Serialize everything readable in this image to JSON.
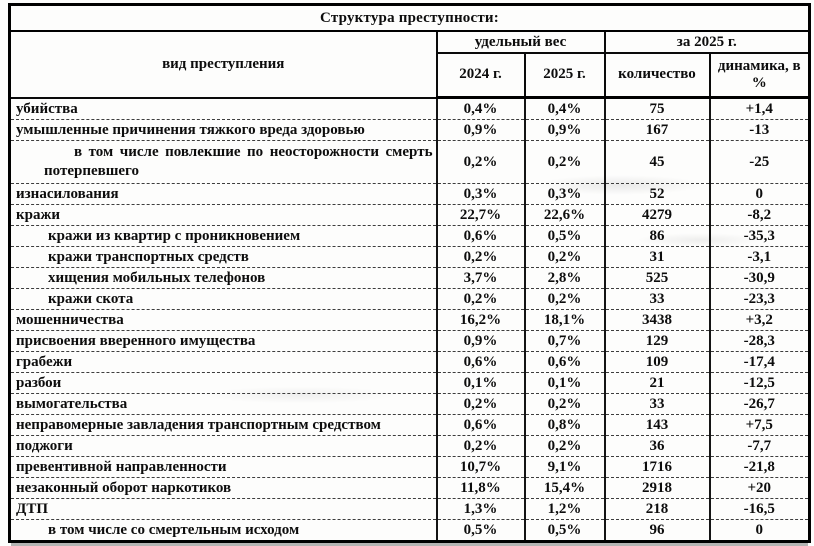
{
  "document": {
    "title": "Структура преступности:",
    "columns": {
      "crime_type": "вид преступления",
      "share_group": "удельный вес",
      "year_group": "за 2025 г.",
      "y2024": "2024 г.",
      "y2025": "2025 г.",
      "count": "количество",
      "dynamics": "динамика, в %"
    },
    "rows": [
      {
        "label": "убийства",
        "indent": "none",
        "share_2024": "0,4%",
        "share_2025": "0,4%",
        "count": "75",
        "dynamics": "+1,4"
      },
      {
        "label": "умышленные причинения тяжкого вреда здоровью",
        "indent": "none",
        "share_2024": "0,9%",
        "share_2025": "0,9%",
        "count": "167",
        "dynamics": "-13"
      },
      {
        "label": "в том числе повлекшие по неосторожности смерть потерпевшего",
        "indent": "hanging",
        "share_2024": "0,2%",
        "share_2025": "0,2%",
        "count": "45",
        "dynamics": "-25"
      },
      {
        "label": "изнасилования",
        "indent": "none",
        "share_2024": "0,3%",
        "share_2025": "0,3%",
        "count": "52",
        "dynamics": "0"
      },
      {
        "label": "кражи",
        "indent": "none",
        "share_2024": "22,7%",
        "share_2025": "22,6%",
        "count": "4279",
        "dynamics": "-8,2"
      },
      {
        "label": "кражи из квартир с проникновением",
        "indent": "sub",
        "share_2024": "0,6%",
        "share_2025": "0,5%",
        "count": "86",
        "dynamics": "-35,3"
      },
      {
        "label": "кражи транспортных средств",
        "indent": "sub",
        "share_2024": "0,2%",
        "share_2025": "0,2%",
        "count": "31",
        "dynamics": "-3,1"
      },
      {
        "label": "хищения мобильных телефонов",
        "indent": "sub",
        "share_2024": "3,7%",
        "share_2025": "2,8%",
        "count": "525",
        "dynamics": "-30,9"
      },
      {
        "label": "кражи скота",
        "indent": "sub",
        "share_2024": "0,2%",
        "share_2025": "0,2%",
        "count": "33",
        "dynamics": "-23,3"
      },
      {
        "label": "мошенничества",
        "indent": "none",
        "share_2024": "16,2%",
        "share_2025": "18,1%",
        "count": "3438",
        "dynamics": "+3,2"
      },
      {
        "label": "присвоения вверенного имущества",
        "indent": "none",
        "share_2024": "0,9%",
        "share_2025": "0,7%",
        "count": "129",
        "dynamics": "-28,3"
      },
      {
        "label": "грабежи",
        "indent": "none",
        "share_2024": "0,6%",
        "share_2025": "0,6%",
        "count": "109",
        "dynamics": "-17,4"
      },
      {
        "label": "разбои",
        "indent": "none",
        "share_2024": "0,1%",
        "share_2025": "0,1%",
        "count": "21",
        "dynamics": "-12,5"
      },
      {
        "label": "вымогательства",
        "indent": "none",
        "share_2024": "0,2%",
        "share_2025": "0,2%",
        "count": "33",
        "dynamics": "-26,7"
      },
      {
        "label": "неправомерные завладения транспортным средством",
        "indent": "none",
        "share_2024": "0,6%",
        "share_2025": "0,8%",
        "count": "143",
        "dynamics": "+7,5"
      },
      {
        "label": "поджоги",
        "indent": "none",
        "share_2024": "0,2%",
        "share_2025": "0,2%",
        "count": "36",
        "dynamics": "-7,7"
      },
      {
        "label": "превентивной направленности",
        "indent": "none",
        "share_2024": "10,7%",
        "share_2025": "9,1%",
        "count": "1716",
        "dynamics": "-21,8"
      },
      {
        "label": "незаконный оборот наркотиков",
        "indent": "none",
        "share_2024": "11,8%",
        "share_2025": "15,4%",
        "count": "2918",
        "dynamics": "+20"
      },
      {
        "label": "ДТП",
        "indent": "none",
        "share_2024": "1,3%",
        "share_2025": "1,2%",
        "count": "218",
        "dynamics": "-16,5"
      },
      {
        "label": "в том числе со смертельным исходом",
        "indent": "sub",
        "share_2024": "0,5%",
        "share_2025": "0,5%",
        "count": "96",
        "dynamics": "0"
      }
    ]
  }
}
